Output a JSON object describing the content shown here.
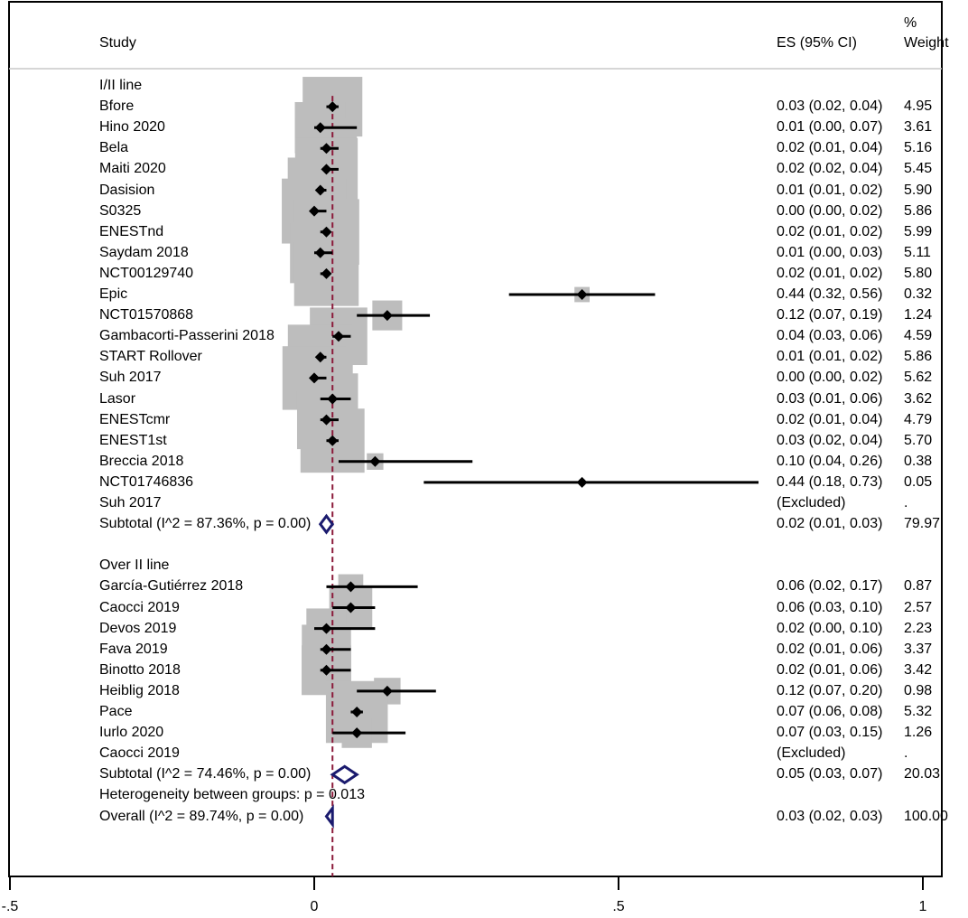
{
  "header": {
    "study": "Study",
    "es": "ES (95% CI)",
    "pct": "%",
    "weight": "Weight"
  },
  "chart_data": {
    "type": "forest",
    "xlim": [
      -0.5,
      1
    ],
    "x_ticks": [
      "-.5",
      "0",
      ".5",
      "1"
    ],
    "x_tick_values": [
      -0.5,
      0,
      0.5,
      1
    ],
    "reference_line": 0.03,
    "groups": [
      {
        "name": "I/II line",
        "studies": [
          {
            "label": "Bfore",
            "es": 0.03,
            "lo": 0.02,
            "hi": 0.04,
            "w": 4.95,
            "ci_text": "0.03 (0.02, 0.04)",
            "w_text": "4.95"
          },
          {
            "label": "Hino 2020",
            "es": 0.01,
            "lo": 0.0,
            "hi": 0.07,
            "w": 3.61,
            "ci_text": "0.01 (0.00, 0.07)",
            "w_text": "3.61"
          },
          {
            "label": "Bela",
            "es": 0.02,
            "lo": 0.01,
            "hi": 0.04,
            "w": 5.16,
            "ci_text": "0.02 (0.01, 0.04)",
            "w_text": "5.16"
          },
          {
            "label": "Maiti 2020",
            "es": 0.02,
            "lo": 0.02,
            "hi": 0.04,
            "w": 5.45,
            "ci_text": "0.02 (0.02, 0.04)",
            "w_text": "5.45"
          },
          {
            "label": "Dasision",
            "es": 0.01,
            "lo": 0.01,
            "hi": 0.02,
            "w": 5.9,
            "ci_text": "0.01 (0.01, 0.02)",
            "w_text": "5.90"
          },
          {
            "label": "S0325",
            "es": 0.0,
            "lo": 0.0,
            "hi": 0.02,
            "w": 5.86,
            "ci_text": "0.00 (0.00, 0.02)",
            "w_text": "5.86"
          },
          {
            "label": "ENESTnd",
            "es": 0.02,
            "lo": 0.01,
            "hi": 0.02,
            "w": 5.99,
            "ci_text": "0.02 (0.01, 0.02)",
            "w_text": "5.99"
          },
          {
            "label": "Saydam 2018",
            "es": 0.01,
            "lo": 0.0,
            "hi": 0.03,
            "w": 5.11,
            "ci_text": "0.01 (0.00, 0.03)",
            "w_text": "5.11"
          },
          {
            "label": "NCT00129740",
            "es": 0.02,
            "lo": 0.01,
            "hi": 0.02,
            "w": 5.8,
            "ci_text": "0.02 (0.01, 0.02)",
            "w_text": "5.80"
          },
          {
            "label": "Epic",
            "es": 0.44,
            "lo": 0.32,
            "hi": 0.56,
            "w": 0.32,
            "ci_text": "0.44 (0.32, 0.56)",
            "w_text": "0.32"
          },
          {
            "label": "NCT01570868",
            "es": 0.12,
            "lo": 0.07,
            "hi": 0.19,
            "w": 1.24,
            "ci_text": "0.12 (0.07, 0.19)",
            "w_text": "1.24"
          },
          {
            "label": "Gambacorti-Passerini 2018",
            "es": 0.04,
            "lo": 0.03,
            "hi": 0.06,
            "w": 4.59,
            "ci_text": "0.04 (0.03, 0.06)",
            "w_text": "4.59"
          },
          {
            "label": "START Rollover",
            "es": 0.01,
            "lo": 0.01,
            "hi": 0.02,
            "w": 5.86,
            "ci_text": "0.01 (0.01, 0.02)",
            "w_text": "5.86"
          },
          {
            "label": "Suh 2017",
            "es": 0.0,
            "lo": 0.0,
            "hi": 0.02,
            "w": 5.62,
            "ci_text": "0.00 (0.00, 0.02)",
            "w_text": "5.62"
          },
          {
            "label": "Lasor",
            "es": 0.03,
            "lo": 0.01,
            "hi": 0.06,
            "w": 3.62,
            "ci_text": "0.03 (0.01, 0.06)",
            "w_text": "3.62"
          },
          {
            "label": "ENESTcmr",
            "es": 0.02,
            "lo": 0.01,
            "hi": 0.04,
            "w": 4.79,
            "ci_text": "0.02 (0.01, 0.04)",
            "w_text": "4.79"
          },
          {
            "label": "ENEST1st",
            "es": 0.03,
            "lo": 0.02,
            "hi": 0.04,
            "w": 5.7,
            "ci_text": "0.03 (0.02, 0.04)",
            "w_text": "5.70"
          },
          {
            "label": "Breccia 2018",
            "es": 0.1,
            "lo": 0.04,
            "hi": 0.26,
            "w": 0.38,
            "ci_text": "0.10 (0.04, 0.26)",
            "w_text": "0.38"
          },
          {
            "label": "NCT01746836",
            "es": 0.44,
            "lo": 0.18,
            "hi": 0.73,
            "w": 0.05,
            "ci_text": "0.44 (0.18, 0.73)",
            "w_text": "0.05"
          },
          {
            "label": "Suh 2017",
            "excluded": true,
            "ci_text": "(Excluded)",
            "w_text": "."
          }
        ],
        "subtotal": {
          "label": "Subtotal  (I^2 = 87.36%, p = 0.00)",
          "es": 0.02,
          "lo": 0.01,
          "hi": 0.03,
          "ci_text": "0.02 (0.01, 0.03)",
          "w_text": "79.97"
        }
      },
      {
        "name": "Over II line",
        "studies": [
          {
            "label": "García-Gutiérrez 2018",
            "es": 0.06,
            "lo": 0.02,
            "hi": 0.17,
            "w": 0.87,
            "ci_text": "0.06 (0.02, 0.17)",
            "w_text": "0.87"
          },
          {
            "label": "Caocci 2019",
            "es": 0.06,
            "lo": 0.03,
            "hi": 0.1,
            "w": 2.57,
            "ci_text": "0.06 (0.03, 0.10)",
            "w_text": "2.57"
          },
          {
            "label": "Devos 2019",
            "es": 0.02,
            "lo": 0.0,
            "hi": 0.1,
            "w": 2.23,
            "ci_text": "0.02 (0.00, 0.10)",
            "w_text": "2.23"
          },
          {
            "label": "Fava 2019",
            "es": 0.02,
            "lo": 0.01,
            "hi": 0.06,
            "w": 3.37,
            "ci_text": "0.02 (0.01, 0.06)",
            "w_text": "3.37"
          },
          {
            "label": "Binotto 2018",
            "es": 0.02,
            "lo": 0.01,
            "hi": 0.06,
            "w": 3.42,
            "ci_text": "0.02 (0.01, 0.06)",
            "w_text": "3.42"
          },
          {
            "label": "Heiblig 2018",
            "es": 0.12,
            "lo": 0.07,
            "hi": 0.2,
            "w": 0.98,
            "ci_text": "0.12 (0.07, 0.20)",
            "w_text": "0.98"
          },
          {
            "label": "Pace",
            "es": 0.07,
            "lo": 0.06,
            "hi": 0.08,
            "w": 5.32,
            "ci_text": "0.07 (0.06, 0.08)",
            "w_text": "5.32"
          },
          {
            "label": "Iurlo 2020",
            "es": 0.07,
            "lo": 0.03,
            "hi": 0.15,
            "w": 1.26,
            "ci_text": "0.07 (0.03, 0.15)",
            "w_text": "1.26"
          },
          {
            "label": "Caocci 2019",
            "excluded": true,
            "ci_text": "(Excluded)",
            "w_text": "."
          }
        ],
        "subtotal": {
          "label": "Subtotal  (I^2 = 74.46%, p = 0.00)",
          "es": 0.05,
          "lo": 0.03,
          "hi": 0.07,
          "ci_text": "0.05 (0.03, 0.07)",
          "w_text": "20.03"
        }
      }
    ],
    "heterogeneity": "Heterogeneity between groups: p = 0.013",
    "overall": {
      "label": "Overall  (I^2 = 89.74%, p = 0.00)",
      "es": 0.03,
      "lo": 0.02,
      "hi": 0.03,
      "ci_text": "0.03 (0.02, 0.03)",
      "w_text": "100.00"
    },
    "colors": {
      "box": "#bdbdbd",
      "marker": "#000000",
      "diamond": "#1a1a6e",
      "refline": "#8b1a3a"
    }
  }
}
